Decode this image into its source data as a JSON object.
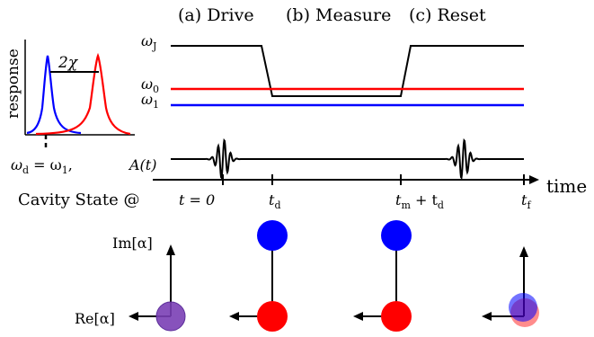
{
  "stages": {
    "drive": "(a) Drive",
    "measure": "(b) Measure",
    "reset": "(c) Reset"
  },
  "inset": {
    "ylabel": "response",
    "chi_label": "2χ",
    "drive_label": "ω",
    "drive_label_sub": "d",
    "drive_label_rest": " = ω",
    "drive_label_sub2": "1",
    "drive_label_end": ","
  },
  "levels": {
    "wJ": "ω",
    "wJ_sub": "J",
    "w0": "ω",
    "w0_sub": "0",
    "w1": "ω",
    "w1_sub": "1"
  },
  "pulse_label": "A(t)",
  "time_axis": {
    "label": "time",
    "cavity_state": "Cavity State @",
    "t0": "t = 0",
    "td": "t",
    "td_sub": "d",
    "tm": "t",
    "tm_sub": "m",
    "tm_rest": " + t",
    "tm_sub2": "d",
    "tf": "t",
    "tf_sub": "f"
  },
  "phase_axes": {
    "im": "Im[α]",
    "re": "Re[α]"
  },
  "colors": {
    "ground": "#0000ff",
    "excited": "#ff0000",
    "mixed": "#7a3fb5",
    "level_line": "#000000"
  }
}
